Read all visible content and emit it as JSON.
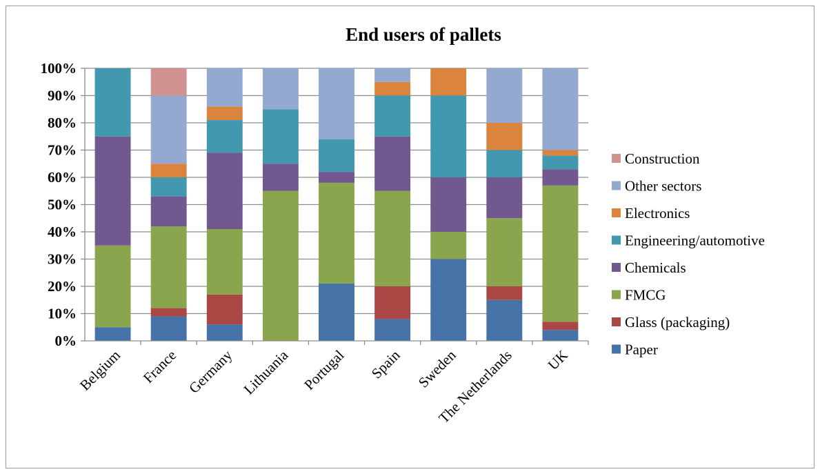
{
  "chart_data": {
    "type": "bar",
    "stacked": true,
    "title": "End users of pallets",
    "xlabel": "",
    "ylabel": "",
    "ylim": [
      0,
      100
    ],
    "yticks": [
      "0%",
      "10%",
      "20%",
      "30%",
      "40%",
      "50%",
      "60%",
      "70%",
      "80%",
      "90%",
      "100%"
    ],
    "grid": true,
    "legend_position": "right",
    "categories": [
      "Belgium",
      "France",
      "Germany",
      "Lithuania",
      "Portugal",
      "Spain",
      "Sweden",
      "The Netherlands",
      "UK"
    ],
    "series": [
      {
        "name": "Paper",
        "color": "#4572a7",
        "values": [
          5,
          9,
          6,
          0,
          21,
          8,
          30,
          15,
          4
        ]
      },
      {
        "name": "Glass (packaging)",
        "color": "#aa4643",
        "values": [
          0,
          3,
          11,
          0,
          0,
          12,
          0,
          5,
          3
        ]
      },
      {
        "name": "FMCG",
        "color": "#89a54e",
        "values": [
          30,
          30,
          24,
          55,
          37,
          35,
          10,
          25,
          50
        ]
      },
      {
        "name": "Chemicals",
        "color": "#71588f",
        "values": [
          40,
          11,
          28,
          10,
          4,
          20,
          20,
          15,
          6
        ]
      },
      {
        "name": "Engineering/automotive",
        "color": "#4198af",
        "values": [
          25,
          7,
          12,
          20,
          12,
          15,
          30,
          10,
          5
        ]
      },
      {
        "name": "Electronics",
        "color": "#db843d",
        "values": [
          0,
          5,
          5,
          0,
          0,
          5,
          10,
          10,
          2
        ]
      },
      {
        "name": "Other sectors",
        "color": "#93a9cf",
        "values": [
          0,
          25,
          14,
          15,
          26,
          5,
          0,
          20,
          30
        ]
      },
      {
        "name": "Construction",
        "color": "#d19392",
        "values": [
          0,
          10,
          0,
          0,
          0,
          0,
          0,
          0,
          0
        ]
      }
    ]
  }
}
